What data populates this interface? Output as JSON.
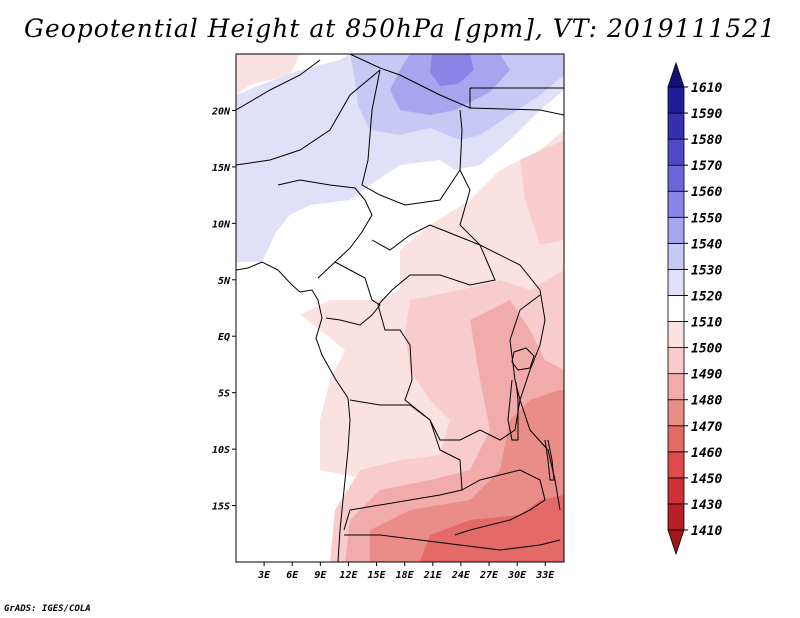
{
  "title": "Geopotential Height at 850hPa [gpm], VT: 2019111521",
  "credit": "GrADS: IGES/COLA",
  "map": {
    "lon_ticks": [
      "3E",
      "6E",
      "9E",
      "12E",
      "15E",
      "18E",
      "21E",
      "24E",
      "27E",
      "30E",
      "33E"
    ],
    "lat_ticks": [
      "20N",
      "15N",
      "10N",
      "5N",
      "EQ",
      "5S",
      "10S",
      "15S"
    ],
    "lon_range_deg": [
      0,
      35
    ],
    "lat_range_deg": [
      -20,
      25
    ]
  },
  "colorbar": {
    "levels": [
      "1410",
      "1430",
      "1450",
      "1460",
      "1470",
      "1480",
      "1490",
      "1500",
      "1510",
      "1520",
      "1530",
      "1540",
      "1550",
      "1560",
      "1570",
      "1580",
      "1590",
      "1610"
    ],
    "colors": [
      "#e8e0f8",
      "#b5202a",
      "#cf3138",
      "#e04a4a",
      "#e46a68",
      "#ea8c88",
      "#f2ababa",
      "#f8cccc",
      "#fbe2e2",
      "#ffffff",
      "#e0e0f8",
      "#c8c8f4",
      "#a8a4ee",
      "#8c84e6",
      "#6e66d8",
      "#5048c6",
      "#3530ad",
      "#201e96",
      "#161080"
    ],
    "bottom_color": "#a01818",
    "top_color": "#14107a"
  }
}
